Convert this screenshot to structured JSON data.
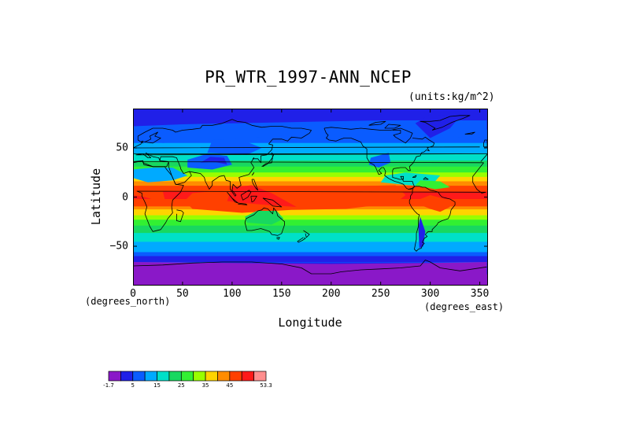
{
  "title": "PR_WTR_1997-ANN_NCEP",
  "units": "(units:kg/m^2)",
  "chart_data": {
    "type": "heatmap",
    "title": "PR_WTR_1997-ANN_NCEP",
    "xlabel": "Longitude",
    "ylabel": "Latitude",
    "x_unit_label": "(degrees_east)",
    "y_unit_label": "(degrees_north)",
    "xlim": [
      0,
      357.5
    ],
    "ylim": [
      -90,
      90
    ],
    "x_ticks": [
      "0",
      "50",
      "100",
      "150",
      "200",
      "250",
      "300",
      "350"
    ],
    "y_ticks": [
      "50",
      "0",
      "−50"
    ],
    "colorbar": {
      "labels": [
        "-1.7",
        "5",
        "15",
        "25",
        "35",
        "45",
        "53.3"
      ],
      "min": -1.7,
      "max": 53.3,
      "colors": [
        "#8a18c8",
        "#2020e8",
        "#0a5cff",
        "#00aaff",
        "#00e0c8",
        "#18d860",
        "#33f033",
        "#99ff00",
        "#ffd400",
        "#ff8c00",
        "#ff4000",
        "#ff1a1a",
        "#ff8e8e"
      ]
    },
    "zonal_mean_kg_m2": [
      {
        "lat": -90,
        "value": 1
      },
      {
        "lat": -75,
        "value": 3
      },
      {
        "lat": -65,
        "value": 7
      },
      {
        "lat": -55,
        "value": 11
      },
      {
        "lat": -45,
        "value": 15
      },
      {
        "lat": -35,
        "value": 20
      },
      {
        "lat": -25,
        "value": 26
      },
      {
        "lat": -15,
        "value": 34
      },
      {
        "lat": -5,
        "value": 44
      },
      {
        "lat": 5,
        "value": 46
      },
      {
        "lat": 15,
        "value": 38
      },
      {
        "lat": 25,
        "value": 28
      },
      {
        "lat": 35,
        "value": 21
      },
      {
        "lat": 45,
        "value": 15
      },
      {
        "lat": 55,
        "value": 11
      },
      {
        "lat": 65,
        "value": 8
      },
      {
        "lat": 75,
        "value": 5
      },
      {
        "lat": 90,
        "value": 3
      }
    ]
  }
}
